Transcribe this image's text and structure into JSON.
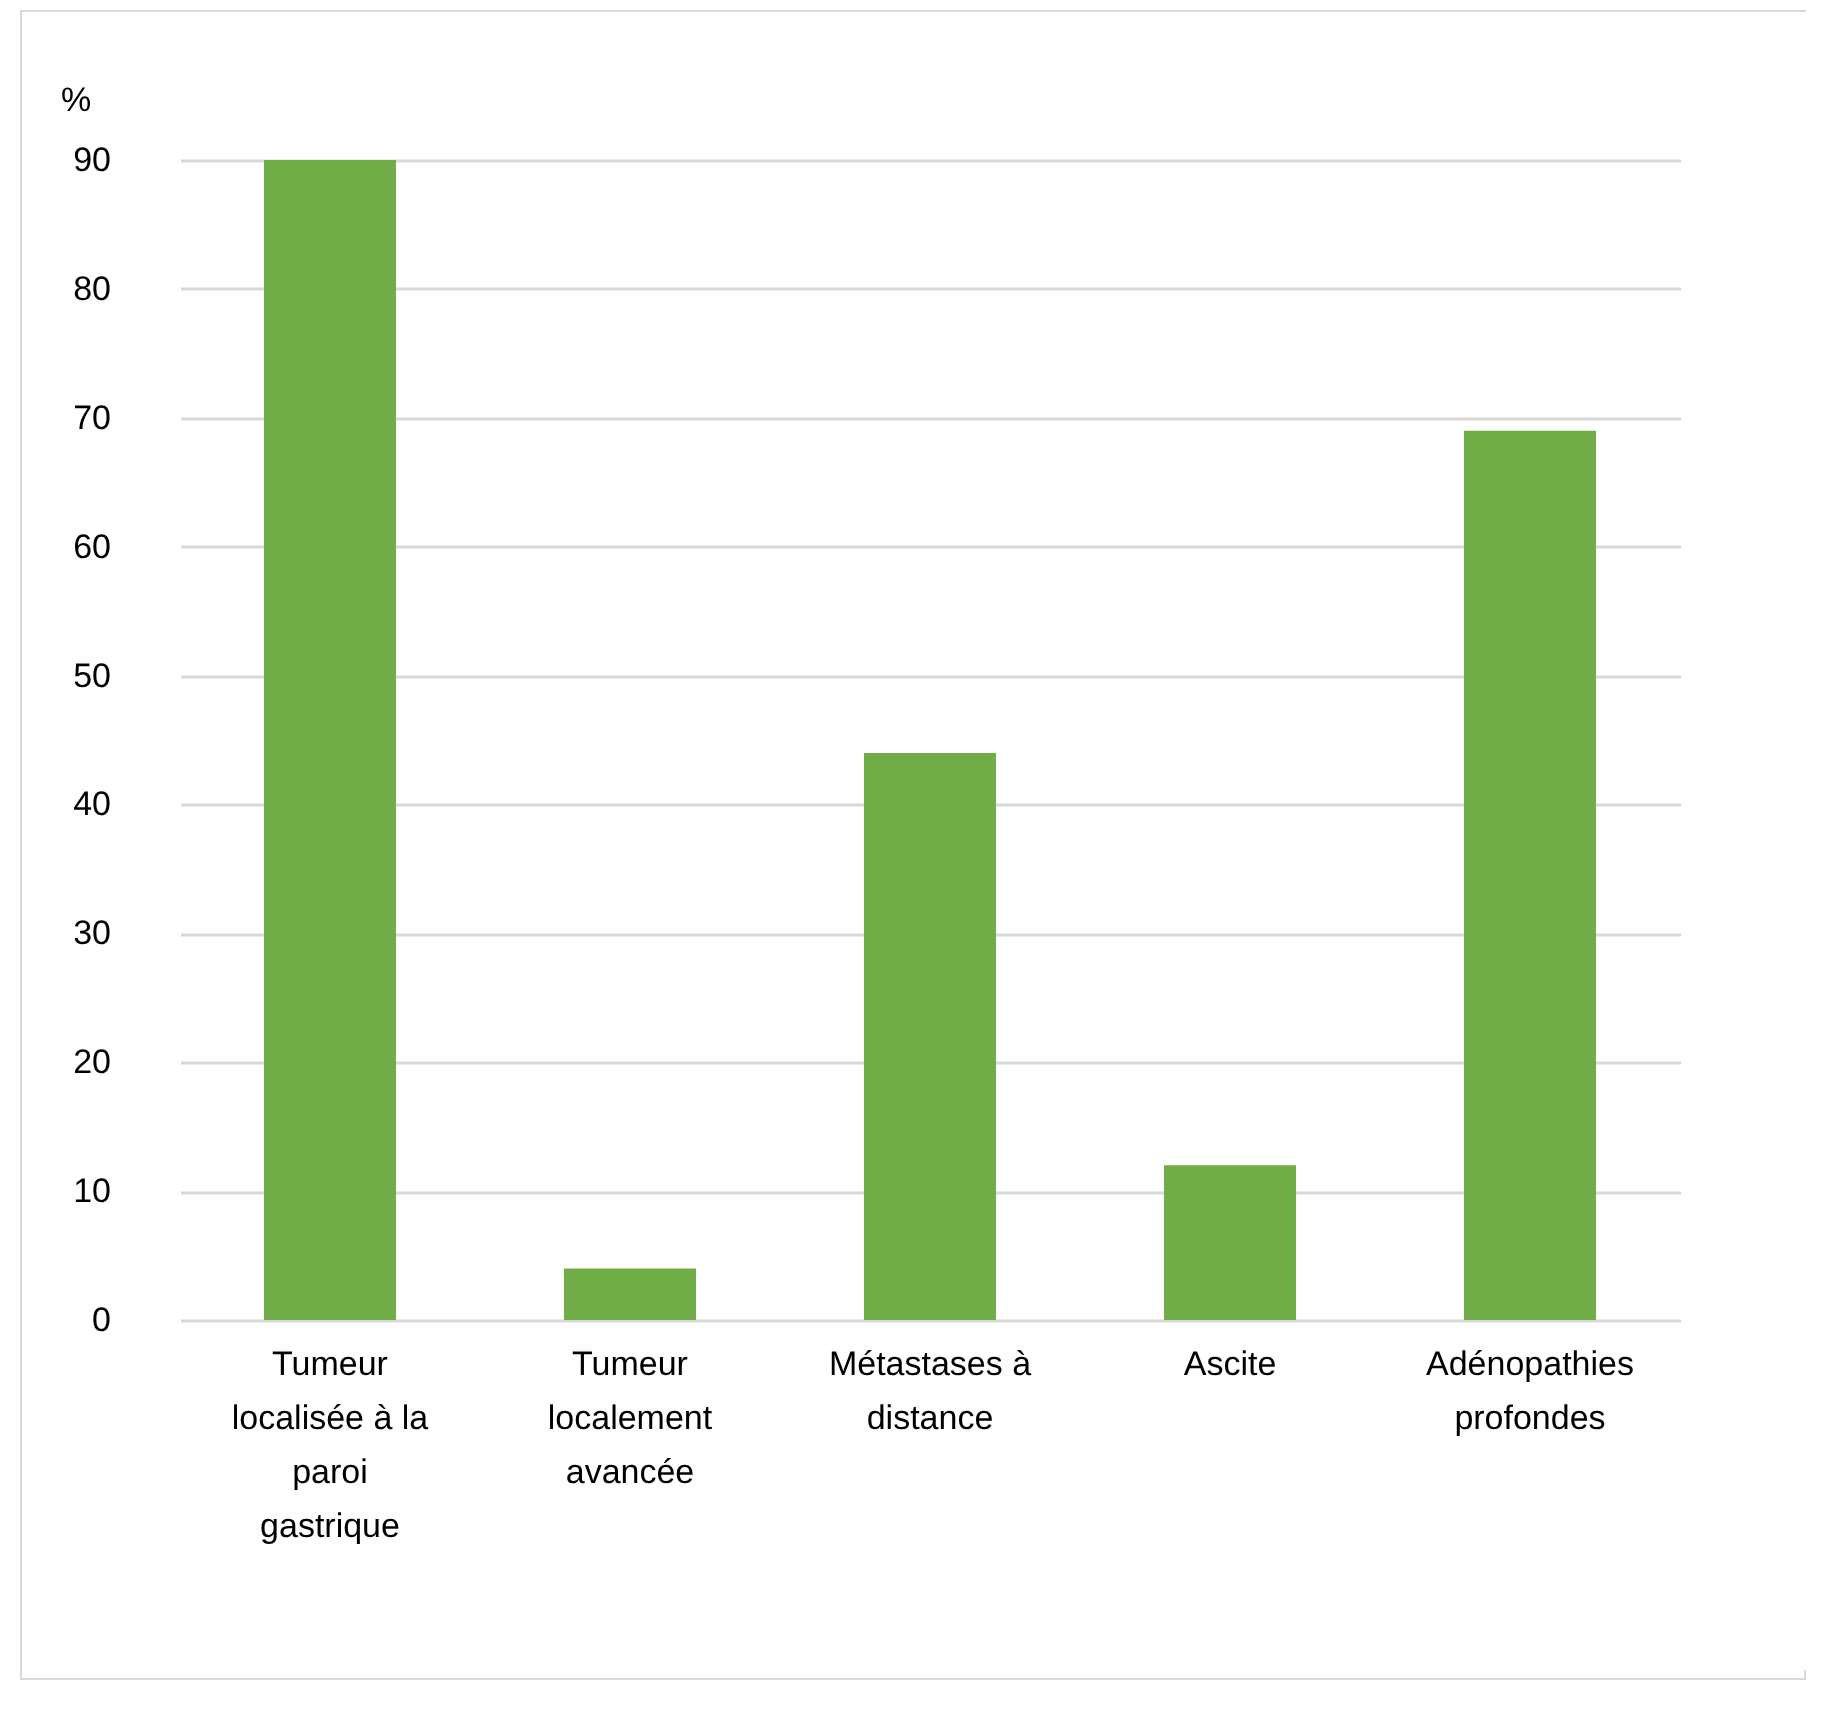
{
  "chart_data": {
    "type": "bar",
    "ylabel": "%",
    "categories": [
      "Tumeur localisée à la paroi gastrique",
      "Tumeur localement avancée",
      "Métastases à distance",
      "Ascite",
      "Adénopathies profondes"
    ],
    "values": [
      90,
      4,
      44,
      12,
      69
    ],
    "color": "#70ad47",
    "ylim": [
      0,
      90
    ],
    "yticks": [
      0,
      10,
      20,
      30,
      40,
      50,
      60,
      70,
      80,
      90
    ],
    "grid": "y"
  }
}
